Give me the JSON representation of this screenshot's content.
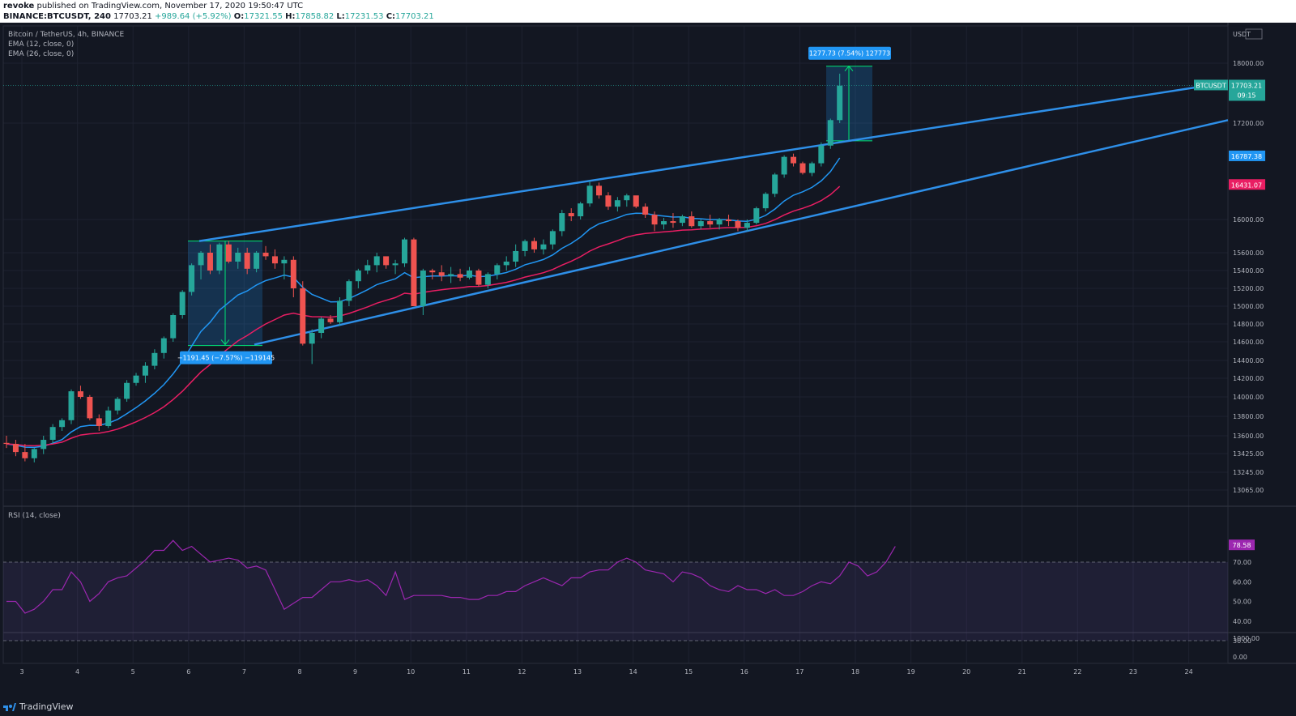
{
  "header": {
    "publisher": "revoke",
    "published_text": "published on TradingView.com, November 17, 2020 19:50:47 UTC",
    "symbol_line": "BINANCE:BTCUSDT, 240",
    "last": "17703.21",
    "change": "+989.64 (+5.92%)",
    "o_label": "O:",
    "o": "17321.55",
    "h_label": "H:",
    "h": "17858.82",
    "l_label": "L:",
    "l": "17231.53",
    "c_label": "C:",
    "c": "17703.21"
  },
  "legend": {
    "title": "Bitcoin / TetherUS, 4h, BINANCE",
    "ema12": "EMA (12, close, 0)",
    "ema26": "EMA (26, close, 0)"
  },
  "rsi_legend": "RSI (14, close)",
  "footer": {
    "brand": "TradingView"
  },
  "colors": {
    "up": "#26a69a",
    "down": "#ef5350",
    "ema12": "#2196f3",
    "ema26": "#e91e63",
    "rsi": "#9c27b0",
    "trend": "#2e8fe8",
    "measure": "#00e676"
  },
  "chart_data": {
    "type": "candlestick",
    "price_axis": {
      "currency": "USDT",
      "ticks": [
        "18000.00",
        "17200.00",
        "16000.00",
        "15600.00",
        "15400.00",
        "15200.00",
        "15000.00",
        "14800.00",
        "14600.00",
        "14400.00",
        "14200.00",
        "14000.00",
        "13800.00",
        "13600.00",
        "13425.00",
        "13245.00",
        "13065.00"
      ],
      "last_price_label": "BTCUSDT",
      "last_price": "17703.21",
      "countdown": "09:15",
      "ema12_label": "16787.38",
      "ema26_label": "16431.07"
    },
    "x_axis": {
      "ticks": [
        "3",
        "4",
        "5",
        "6",
        "7",
        "8",
        "9",
        "10",
        "11",
        "12",
        "13",
        "14",
        "15",
        "16",
        "17",
        "18",
        "19",
        "20",
        "21",
        "22",
        "23",
        "24"
      ]
    },
    "candles_ohlc_approx": [
      [
        13530,
        13600,
        13480,
        13520
      ],
      [
        13520,
        13560,
        13400,
        13440
      ],
      [
        13440,
        13520,
        13350,
        13380
      ],
      [
        13380,
        13480,
        13340,
        13470
      ],
      [
        13470,
        13600,
        13420,
        13560
      ],
      [
        13560,
        13720,
        13520,
        13690
      ],
      [
        13690,
        13780,
        13650,
        13760
      ],
      [
        13760,
        14080,
        13720,
        14060
      ],
      [
        14060,
        14120,
        13980,
        14000
      ],
      [
        14000,
        14020,
        13760,
        13780
      ],
      [
        13780,
        13820,
        13650,
        13700
      ],
      [
        13700,
        13900,
        13680,
        13860
      ],
      [
        13860,
        14000,
        13820,
        13980
      ],
      [
        13980,
        14180,
        13950,
        14150
      ],
      [
        14150,
        14260,
        14120,
        14230
      ],
      [
        14230,
        14380,
        14150,
        14340
      ],
      [
        14340,
        14520,
        14300,
        14480
      ],
      [
        14480,
        14660,
        14420,
        14640
      ],
      [
        14640,
        14920,
        14600,
        14900
      ],
      [
        14900,
        15180,
        14860,
        15160
      ],
      [
        15160,
        15480,
        15120,
        15460
      ],
      [
        15460,
        15620,
        15300,
        15600
      ],
      [
        15600,
        15700,
        15360,
        15400
      ],
      [
        15400,
        15720,
        15360,
        15700
      ],
      [
        15700,
        15740,
        15480,
        15500
      ],
      [
        15500,
        15660,
        15420,
        15600
      ],
      [
        15600,
        15660,
        15360,
        15420
      ],
      [
        15420,
        15620,
        15380,
        15600
      ],
      [
        15600,
        15680,
        15520,
        15560
      ],
      [
        15560,
        15640,
        15420,
        15480
      ],
      [
        15480,
        15560,
        15300,
        15520
      ],
      [
        15520,
        15560,
        15100,
        15200
      ],
      [
        15200,
        15280,
        14560,
        14580
      ],
      [
        14580,
        14740,
        14360,
        14700
      ],
      [
        14700,
        14880,
        14640,
        14860
      ],
      [
        14860,
        14900,
        14800,
        14820
      ],
      [
        14820,
        15100,
        14780,
        15060
      ],
      [
        15060,
        15300,
        15000,
        15280
      ],
      [
        15280,
        15420,
        15200,
        15400
      ],
      [
        15400,
        15520,
        15360,
        15460
      ],
      [
        15460,
        15600,
        15380,
        15560
      ],
      [
        15560,
        15520,
        15420,
        15460
      ],
      [
        15460,
        15520,
        15360,
        15480
      ],
      [
        15480,
        15780,
        15440,
        15760
      ],
      [
        15760,
        15780,
        15000,
        15000
      ],
      [
        15000,
        15420,
        14900,
        15400
      ],
      [
        15400,
        15420,
        15300,
        15380
      ],
      [
        15380,
        15460,
        15280,
        15340
      ],
      [
        15340,
        15440,
        15260,
        15360
      ],
      [
        15360,
        15420,
        15280,
        15320
      ],
      [
        15320,
        15440,
        15300,
        15400
      ],
      [
        15400,
        15420,
        15220,
        15240
      ],
      [
        15240,
        15380,
        15200,
        15360
      ],
      [
        15360,
        15480,
        15300,
        15460
      ],
      [
        15460,
        15560,
        15400,
        15500
      ],
      [
        15500,
        15700,
        15440,
        15620
      ],
      [
        15620,
        15760,
        15560,
        15740
      ],
      [
        15740,
        15780,
        15600,
        15640
      ],
      [
        15640,
        15760,
        15580,
        15700
      ],
      [
        15700,
        15880,
        15640,
        15860
      ],
      [
        15860,
        16120,
        15800,
        16080
      ],
      [
        16080,
        16140,
        15980,
        16040
      ],
      [
        16040,
        16220,
        16000,
        16200
      ],
      [
        16200,
        16480,
        16160,
        16420
      ],
      [
        16420,
        16460,
        16260,
        16300
      ],
      [
        16300,
        16340,
        16120,
        16160
      ],
      [
        16160,
        16280,
        16100,
        16240
      ],
      [
        16240,
        16320,
        16160,
        16300
      ],
      [
        16300,
        16280,
        16140,
        16160
      ],
      [
        16160,
        16200,
        16020,
        16060
      ],
      [
        16060,
        16100,
        15860,
        15940
      ],
      [
        15940,
        16020,
        15880,
        15980
      ],
      [
        15980,
        16080,
        15900,
        15960
      ],
      [
        15960,
        16060,
        15920,
        16040
      ],
      [
        16040,
        16100,
        15900,
        15920
      ],
      [
        15920,
        16000,
        15880,
        15980
      ],
      [
        15980,
        16060,
        15900,
        15940
      ],
      [
        15940,
        16020,
        15880,
        16000
      ],
      [
        16000,
        16060,
        15920,
        15980
      ],
      [
        15980,
        16000,
        15860,
        15900
      ],
      [
        15900,
        16000,
        15860,
        15960
      ],
      [
        15960,
        16160,
        15940,
        16140
      ],
      [
        16140,
        16340,
        16100,
        16320
      ],
      [
        16320,
        16580,
        16280,
        16560
      ],
      [
        16560,
        16800,
        16520,
        16780
      ],
      [
        16780,
        16820,
        16660,
        16700
      ],
      [
        16700,
        16720,
        16560,
        16580
      ],
      [
        16580,
        16720,
        16540,
        16700
      ],
      [
        16700,
        16960,
        16660,
        16920
      ],
      [
        16920,
        17260,
        16880,
        17240
      ],
      [
        17240,
        17860,
        17200,
        17700
      ]
    ],
    "measure_down": {
      "label": "−1191.45 (−7.57%) −119145"
    },
    "measure_up": {
      "label": "1277.73 (7.54%) 127773"
    },
    "rsi": {
      "ticks": [
        "70.00",
        "60.00",
        "50.00",
        "40.00",
        "30.00"
      ],
      "bands": [
        30,
        70
      ],
      "current_label": "78.58",
      "values": [
        50,
        50,
        44,
        46,
        50,
        56,
        56,
        65,
        60,
        50,
        54,
        60,
        62,
        63,
        67,
        71,
        76,
        76,
        81,
        76,
        78,
        74,
        70,
        71,
        72,
        71,
        67,
        68,
        66,
        56,
        46,
        49,
        52,
        52,
        56,
        60,
        60,
        61,
        60,
        61,
        58,
        53,
        65,
        51,
        53,
        53,
        53,
        53,
        52,
        52,
        51,
        51,
        53,
        53,
        55,
        55,
        58,
        60,
        62,
        60,
        58,
        62,
        62,
        65,
        66,
        66,
        70,
        72,
        70,
        66,
        65,
        64,
        60,
        65,
        64,
        62,
        58,
        56,
        55,
        58,
        56,
        56,
        54,
        56,
        53,
        53,
        55,
        58,
        60,
        59,
        63,
        70,
        68,
        63,
        65,
        70,
        78
      ]
    },
    "volume_axis": {
      "ticks": [
        "1000.00",
        "0.00"
      ]
    }
  }
}
